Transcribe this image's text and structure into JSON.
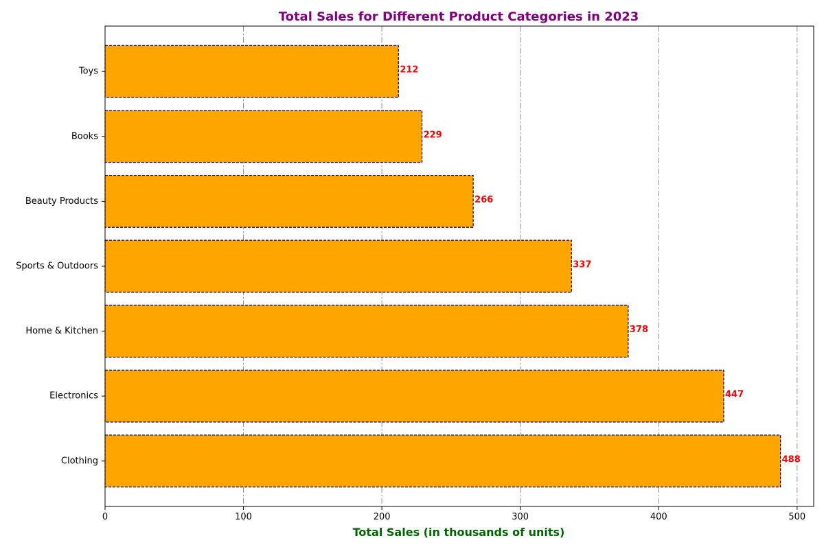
{
  "chart_data": {
    "type": "bar",
    "orientation": "horizontal",
    "title": "Total Sales for Different Product Categories in 2023",
    "xlabel": "Total Sales (in thousands of units)",
    "ylabel": "",
    "categories": [
      "Toys",
      "Books",
      "Beauty Products",
      "Sports & Outdoors",
      "Home & Kitchen",
      "Electronics",
      "Clothing"
    ],
    "values": [
      212,
      229,
      266,
      337,
      378,
      447,
      488
    ],
    "value_labels": [
      "212",
      "229",
      "266",
      "337",
      "378",
      "447",
      "488"
    ],
    "xlim": [
      0,
      512
    ],
    "xticks": [
      0,
      100,
      200,
      300,
      400,
      500
    ],
    "xtick_labels": [
      "0",
      "100",
      "200",
      "300",
      "400",
      "500"
    ],
    "grid": {
      "axis": "x",
      "style": "dash-dot"
    },
    "legend": "none",
    "colors": {
      "bar_fill": "#FFA500",
      "bar_edge": "#000080",
      "title": "#800080",
      "xlabel": "#006400",
      "data_label": "#FF0000",
      "grid": "#808080"
    }
  }
}
